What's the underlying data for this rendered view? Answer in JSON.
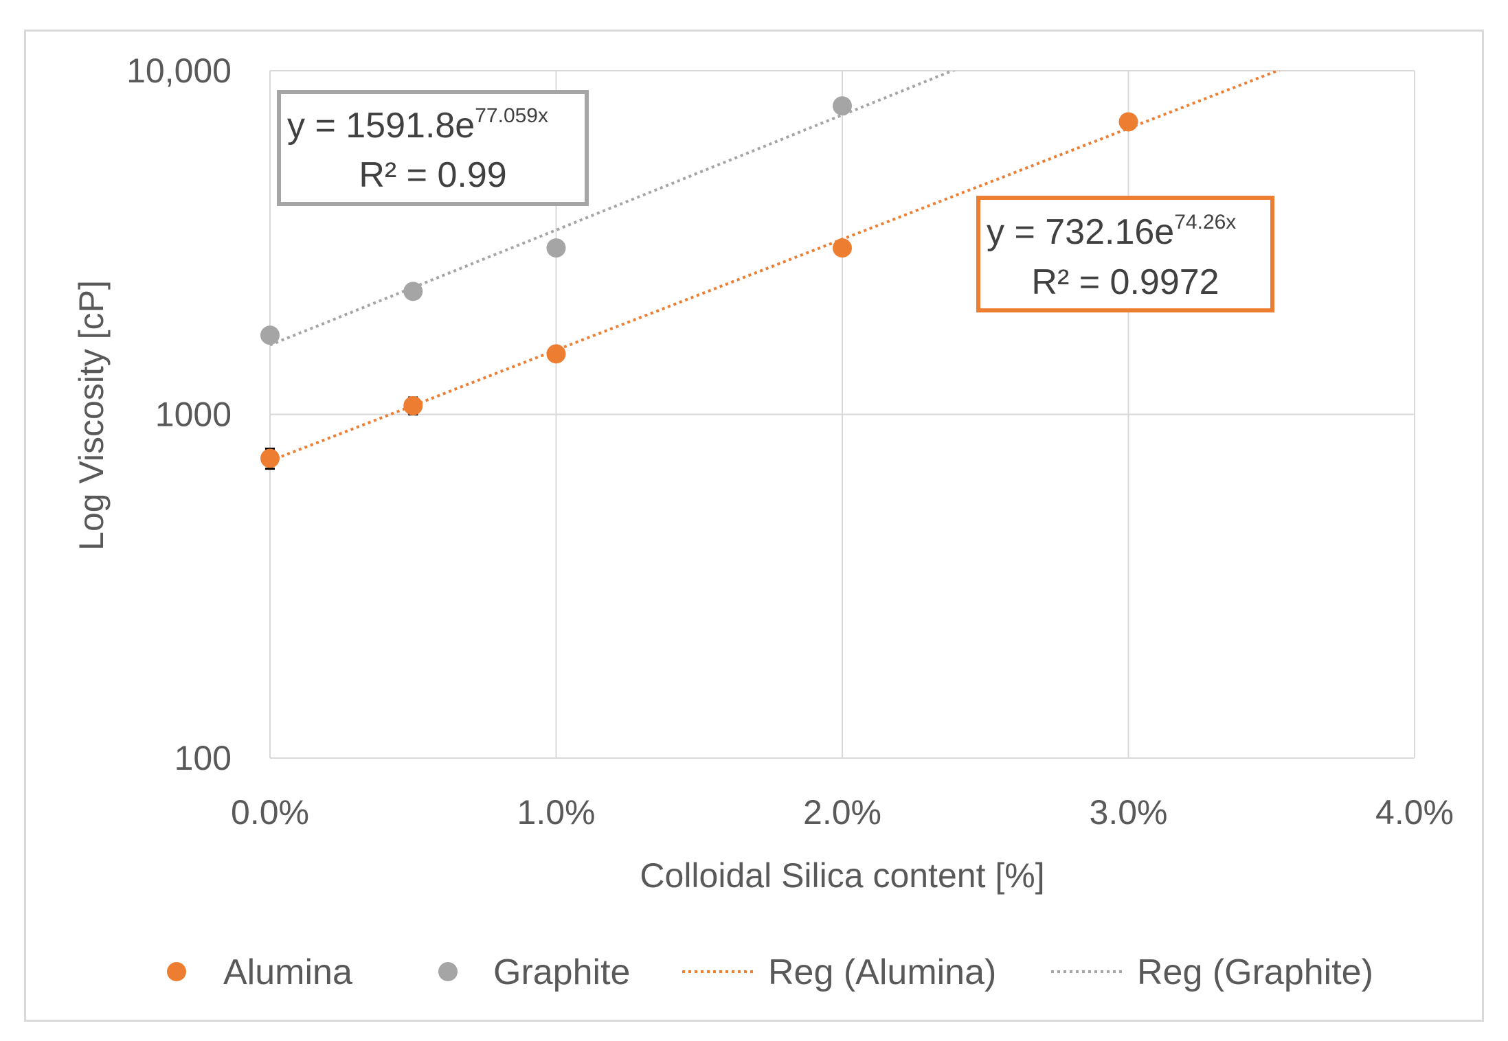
{
  "chart_data": {
    "type": "scatter",
    "xlabel": "Colloidal Silica content [%]",
    "ylabel": "Log Viscosity [cP]",
    "x_ticks": [
      "0.0%",
      "1.0%",
      "2.0%",
      "3.0%",
      "4.0%"
    ],
    "y_ticks": [
      "100",
      "1000",
      "10,000"
    ],
    "xlim": [
      0,
      0.04
    ],
    "ylim": [
      100,
      10000
    ],
    "y_scale": "log",
    "grid": true,
    "legend_position": "bottom",
    "series": [
      {
        "name": "Alumina",
        "color": "#ed7d31",
        "x": [
          0.0,
          0.005,
          0.01,
          0.02,
          0.03
        ],
        "y": [
          745,
          1060,
          1500,
          3050,
          7100
        ],
        "error_bars": [
          50,
          60,
          0,
          0,
          0
        ]
      },
      {
        "name": "Graphite",
        "color": "#a5a5a5",
        "x": [
          0.0,
          0.005,
          0.01,
          0.02
        ],
        "y": [
          1700,
          2280,
          3050,
          7900
        ]
      }
    ],
    "trendlines": [
      {
        "name": "Reg (Alumina)",
        "color": "#ed7d31",
        "type": "exponential",
        "a": 732.16,
        "b": 74.26,
        "equation_text": "y = 732.16e",
        "exponent_text": "74.26x",
        "r2_text": "R² = 0.9972"
      },
      {
        "name": "Reg (Graphite)",
        "color": "#a5a5a5",
        "type": "exponential",
        "a": 1591.8,
        "b": 77.059,
        "equation_text": "y = 1591.8e",
        "exponent_text": "77.059x",
        "r2_text": "R² = 0.99"
      }
    ]
  },
  "legend": {
    "alumina": "Alumina",
    "graphite": "Graphite",
    "reg_alumina": "Reg (Alumina)",
    "reg_graphite": "Reg (Graphite)"
  }
}
